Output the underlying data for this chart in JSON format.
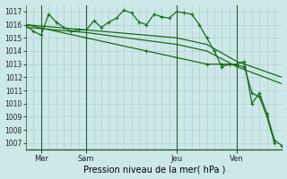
{
  "bg_color": "#cce8e8",
  "grid_color": "#b0d0d0",
  "line_color": "#1a6b1a",
  "xlabel": "Pression niveau de la mer( hPa )",
  "ylim": [
    1006.5,
    1017.5
  ],
  "yticks": [
    1007,
    1008,
    1009,
    1010,
    1011,
    1012,
    1013,
    1014,
    1015,
    1016,
    1017
  ],
  "xtick_labels": [
    "Mer",
    "Sam",
    "Jeu",
    "Ven"
  ],
  "xtick_positions": [
    2,
    8,
    20,
    28
  ],
  "vline_positions": [
    2,
    8,
    20,
    28
  ],
  "xlim": [
    0,
    34
  ],
  "series": [
    {
      "x": [
        0,
        1,
        2,
        3,
        4,
        5,
        6,
        7,
        8,
        9,
        10,
        11,
        12,
        13,
        14,
        15,
        16,
        17,
        18,
        19,
        20,
        21,
        22,
        23,
        24,
        25,
        26,
        27,
        28,
        29,
        30,
        31,
        32,
        33
      ],
      "y": [
        1015.9,
        1015.5,
        1015.2,
        1016.8,
        1016.2,
        1015.8,
        1015.5,
        1015.6,
        1015.6,
        1016.3,
        1015.8,
        1016.2,
        1016.5,
        1017.1,
        1016.9,
        1016.2,
        1016.0,
        1016.8,
        1016.6,
        1016.5,
        1017.0,
        1016.9,
        1016.8,
        1016.0,
        1015.0,
        1014.0,
        1012.8,
        1013.0,
        1012.9,
        1012.8,
        1010.8,
        1010.5,
        1009.0,
        1007.0
      ],
      "marker": "+"
    },
    {
      "x": [
        0,
        8,
        12,
        16,
        20,
        24,
        28,
        34
      ],
      "y": [
        1016.0,
        1015.6,
        1015.4,
        1015.2,
        1015.0,
        1014.5,
        1013.2,
        1012.0
      ],
      "marker": null
    },
    {
      "x": [
        0,
        8,
        12,
        16,
        20,
        24,
        28,
        34
      ],
      "y": [
        1015.8,
        1015.4,
        1015.1,
        1014.8,
        1014.5,
        1014.0,
        1012.8,
        1011.5
      ],
      "marker": null
    },
    {
      "x": [
        0,
        8,
        16,
        20,
        24,
        26,
        28,
        29,
        30,
        31,
        32,
        33,
        34
      ],
      "y": [
        1016.0,
        1015.0,
        1014.0,
        1013.5,
        1013.0,
        1013.0,
        1013.0,
        1013.2,
        1010.0,
        1010.8,
        1009.2,
        1007.2,
        1006.8
      ],
      "marker": "+"
    }
  ]
}
